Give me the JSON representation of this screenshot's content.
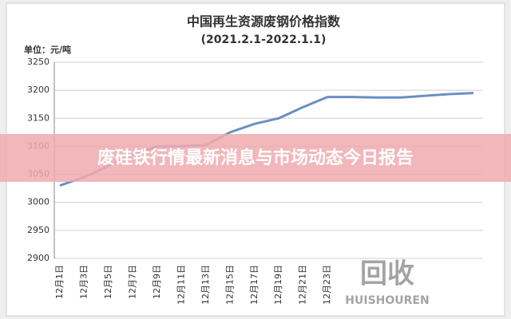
{
  "chart_data": {
    "type": "line",
    "title": "中国再生资源废钢价格指数",
    "subtitle": "(2021.2.1-2022.1.1)",
    "unit_label": "单位：元/吨",
    "categories": [
      "12月1日",
      "12月3日",
      "12月5日",
      "12月7日",
      "12月9日",
      "12月11日",
      "12月13日",
      "12月15日",
      "12月17日",
      "12月19日",
      "12月21日",
      "12月23日",
      null,
      null,
      null,
      null,
      null,
      null
    ],
    "series": [
      {
        "name": "废钢价格指数",
        "color": "#6a8fc4",
        "values": [
          3030,
          3045,
          3065,
          3085,
          3100,
          3100,
          3102,
          3125,
          3140,
          3150,
          3170,
          3188,
          3188,
          3187,
          3187,
          3190,
          3193,
          3195
        ]
      }
    ],
    "ylim": [
      2900,
      3250
    ],
    "yticks": [
      2900,
      2950,
      3000,
      3050,
      3100,
      3150,
      3200,
      3250
    ],
    "grid": true
  },
  "banner": {
    "text": "废硅铁行情最新消息与市场动态今日报告"
  },
  "watermark": {
    "text": "回收",
    "subtext": "HUISHOUREN"
  }
}
